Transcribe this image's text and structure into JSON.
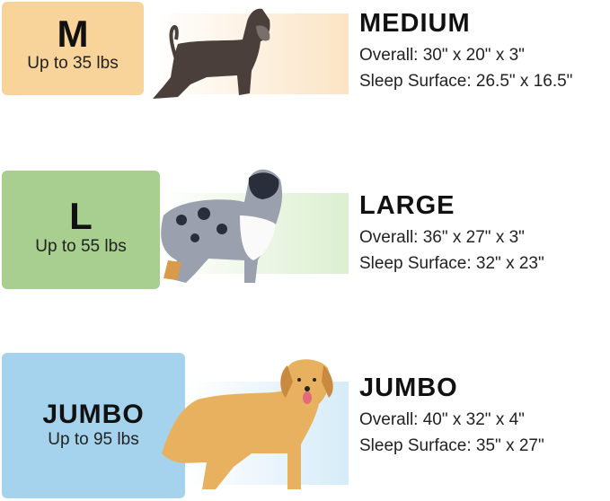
{
  "sizes": [
    {
      "code": "M",
      "weight": "Up to 35 lbs",
      "name": "MEDIUM",
      "overall": "Overall: 30\" x 20\" x 3\"",
      "sleep": "Sleep Surface: 26.5\" x 16.5\"",
      "color": "#f8d49a",
      "tint": "#fbe4c4"
    },
    {
      "code": "L",
      "weight": "Up to 55 lbs",
      "name": "LARGE",
      "overall": "Overall: 36\" x 27\" x 3\"",
      "sleep": "Sleep Surface: 32\" x 23\"",
      "color": "#a8cf8f",
      "tint": "#dcefd0"
    },
    {
      "code": "JUMBO",
      "weight": "Up to 95 lbs",
      "name": "JUMBO",
      "overall": "Overall: 40\" x 32\" x 4\"",
      "sleep": "Sleep Surface: 35\" x 27\"",
      "color": "#a5d3ee",
      "tint": "#d6ecf8"
    }
  ]
}
